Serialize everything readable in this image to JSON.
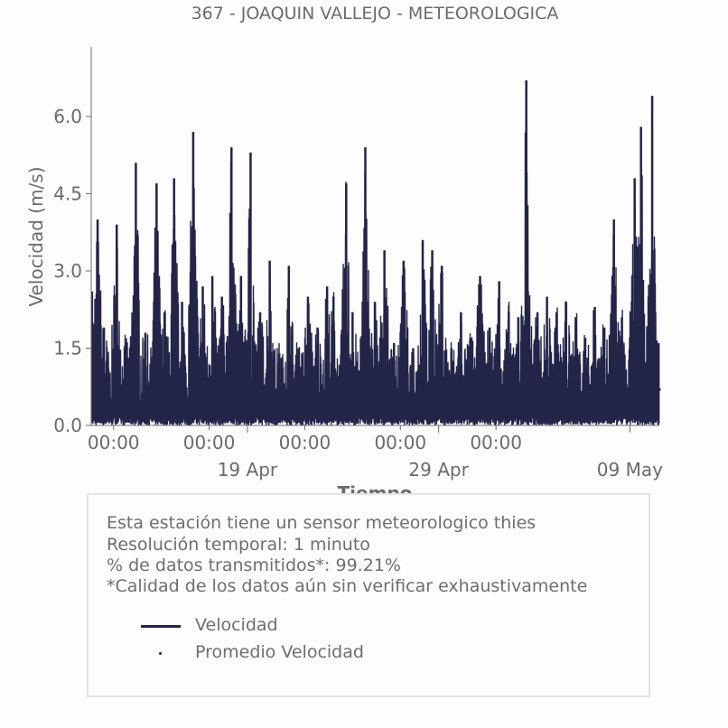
{
  "chart_data": {
    "type": "line",
    "title": "367 - JOAQUIN VALLEJO - METEOROLOGICA",
    "xlabel": "Tiempo",
    "ylabel": "Velocidad (m/s)",
    "ylim": [
      0.0,
      7.35
    ],
    "yticks": [
      "0.0",
      "1.5",
      "3.0",
      "4.5",
      "6.0"
    ],
    "xlim": [
      "2024-04-10T20:00",
      "2024-05-10T13:00"
    ],
    "xticks_time": [
      "00:00",
      "00:00",
      "00:00",
      "00:00",
      "00:00"
    ],
    "xticks_date": [
      "19 Apr",
      "29 Apr",
      "09 May"
    ],
    "grid": false,
    "series": [
      {
        "name": "Velocidad",
        "color": "#222448",
        "peaks": [
          {
            "x": "2024-04-10T21:00",
            "y": 2.6
          },
          {
            "x": "2024-04-11T04:00",
            "y": 4.0
          },
          {
            "x": "2024-04-11T12:00",
            "y": 1.9
          },
          {
            "x": "2024-04-12T04:00",
            "y": 3.9
          },
          {
            "x": "2024-04-12T16:00",
            "y": 1.6
          },
          {
            "x": "2024-04-13T04:00",
            "y": 5.1
          },
          {
            "x": "2024-04-13T16:00",
            "y": 1.8
          },
          {
            "x": "2024-04-14T06:00",
            "y": 4.7
          },
          {
            "x": "2024-04-14T16:00",
            "y": 2.2
          },
          {
            "x": "2024-04-15T04:00",
            "y": 4.8
          },
          {
            "x": "2024-04-15T14:00",
            "y": 2.4
          },
          {
            "x": "2024-04-16T04:00",
            "y": 5.7
          },
          {
            "x": "2024-04-16T16:00",
            "y": 2.7
          },
          {
            "x": "2024-04-17T04:00",
            "y": 2.9
          },
          {
            "x": "2024-04-17T16:00",
            "y": 2.5
          },
          {
            "x": "2024-04-18T04:00",
            "y": 5.4
          },
          {
            "x": "2024-04-18T16:00",
            "y": 2.9
          },
          {
            "x": "2024-04-19T04:00",
            "y": 5.3
          },
          {
            "x": "2024-04-19T16:00",
            "y": 2.2
          },
          {
            "x": "2024-04-20T04:00",
            "y": 3.2
          },
          {
            "x": "2024-04-20T16:00",
            "y": 1.4
          },
          {
            "x": "2024-04-21T04:00",
            "y": 3.1
          },
          {
            "x": "2024-04-21T16:00",
            "y": 1.5
          },
          {
            "x": "2024-04-22T04:00",
            "y": 2.5
          },
          {
            "x": "2024-04-22T16:00",
            "y": 1.9
          },
          {
            "x": "2024-04-23T04:00",
            "y": 2.7
          },
          {
            "x": "2024-04-23T12:00",
            "y": 2.5
          },
          {
            "x": "2024-04-24T04:00",
            "y": 4.7
          },
          {
            "x": "2024-04-24T12:00",
            "y": 2.2
          },
          {
            "x": "2024-04-25T04:00",
            "y": 5.4
          },
          {
            "x": "2024-04-25T16:00",
            "y": 2.4
          },
          {
            "x": "2024-04-26T04:00",
            "y": 3.4
          },
          {
            "x": "2024-04-26T16:00",
            "y": 1.6
          },
          {
            "x": "2024-04-27T04:00",
            "y": 3.2
          },
          {
            "x": "2024-04-27T16:00",
            "y": 1.5
          },
          {
            "x": "2024-04-28T04:00",
            "y": 3.6
          },
          {
            "x": "2024-04-28T16:00",
            "y": 3.4
          },
          {
            "x": "2024-04-29T04:00",
            "y": 3.1
          },
          {
            "x": "2024-04-29T16:00",
            "y": 1.5
          },
          {
            "x": "2024-04-30T04:00",
            "y": 2.2
          },
          {
            "x": "2024-04-30T16:00",
            "y": 1.7
          },
          {
            "x": "2024-05-01T04:00",
            "y": 2.9
          },
          {
            "x": "2024-05-01T16:00",
            "y": 1.9
          },
          {
            "x": "2024-05-02T04:00",
            "y": 2.8
          },
          {
            "x": "2024-05-02T16:00",
            "y": 2.2
          },
          {
            "x": "2024-05-03T04:00",
            "y": 2.1
          },
          {
            "x": "2024-05-03T14:00",
            "y": 6.7
          },
          {
            "x": "2024-05-04T04:00",
            "y": 2.2
          },
          {
            "x": "2024-05-04T16:00",
            "y": 2.5
          },
          {
            "x": "2024-05-05T04:00",
            "y": 2.2
          },
          {
            "x": "2024-05-05T16:00",
            "y": 2.4
          },
          {
            "x": "2024-05-06T04:00",
            "y": 2.1
          },
          {
            "x": "2024-05-06T16:00",
            "y": 1.7
          },
          {
            "x": "2024-05-07T04:00",
            "y": 2.3
          },
          {
            "x": "2024-05-07T16:00",
            "y": 1.9
          },
          {
            "x": "2024-05-08T04:00",
            "y": 4.0
          },
          {
            "x": "2024-05-08T14:00",
            "y": 2.1
          },
          {
            "x": "2024-05-09T06:00",
            "y": 4.8
          },
          {
            "x": "2024-05-09T14:00",
            "y": 5.8
          },
          {
            "x": "2024-05-10T04:00",
            "y": 6.4
          },
          {
            "x": "2024-05-10T12:00",
            "y": 1.6
          }
        ]
      },
      {
        "name": "Promedio Velocidad",
        "color": "#222448",
        "marker": "dot",
        "last": {
          "x": "2024-05-10T13:00",
          "y": 0.7
        }
      }
    ],
    "legend": {
      "placement": "bottom",
      "info_lines": [
        "Esta estación tiene un sensor meteorologico thies",
        "Resolución temporal: 1 minuto",
        "% de datos transmitidos*: 99.21%",
        "*Calidad de los datos aún sin verificar exhaustivamente"
      ],
      "items": [
        "Velocidad",
        "Promedio Velocidad"
      ]
    }
  }
}
